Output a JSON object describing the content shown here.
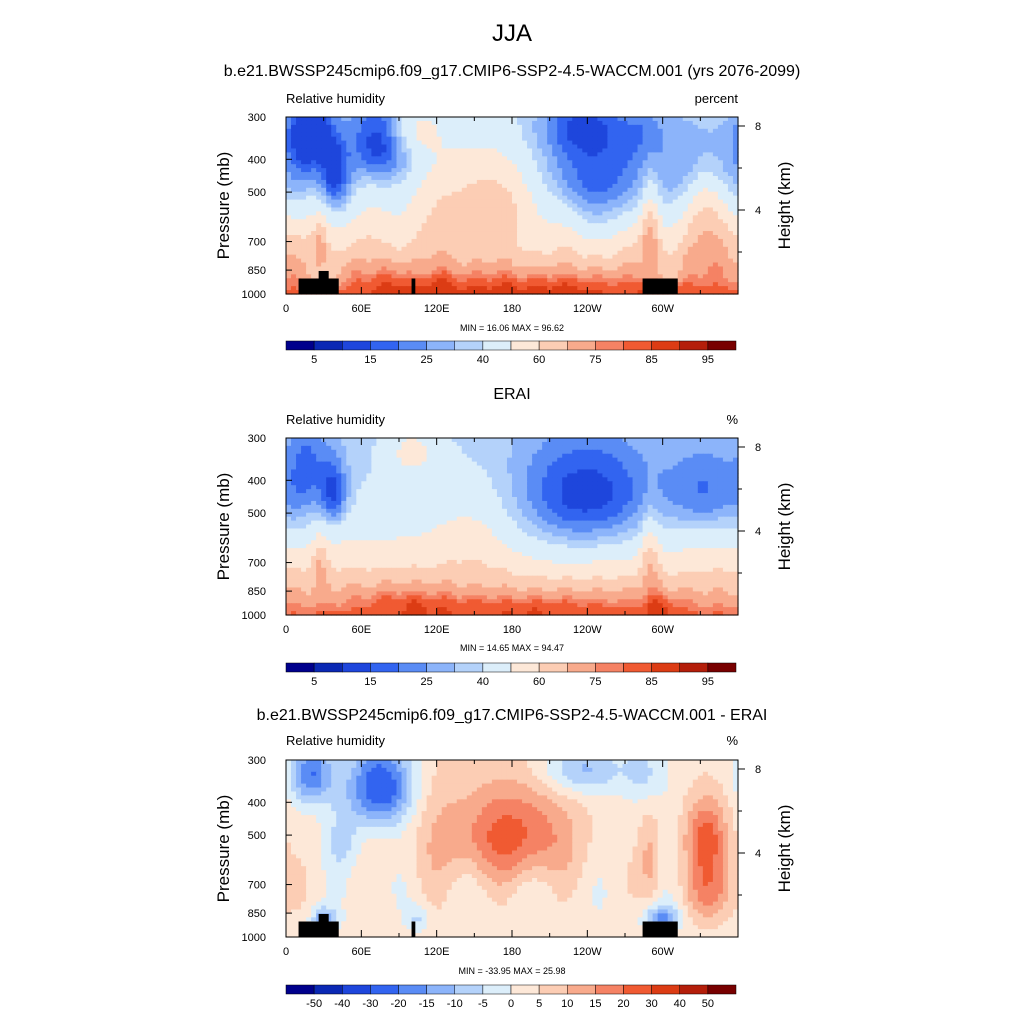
{
  "figure": {
    "main_title": "JJA",
    "model_title": "b.e21.BWSSP245cmip6.f09_g17.CMIP6-SSP2-4.5-WACCM.001 (yrs 2076-2099)",
    "obs_title": "ERAI",
    "diff_title": "b.e21.BWSSP245cmip6.f09_g17.CMIP6-SSP2-4.5-WACCM.001 - ERAI"
  },
  "palette": {
    "abs": [
      "#00008c",
      "#0a28b4",
      "#1e46dc",
      "#3264f0",
      "#5a8cf5",
      "#8cb4fa",
      "#b4d2fa",
      "#dceefa",
      "#fde8d8",
      "#fccdb4",
      "#f8aa8c",
      "#f58264",
      "#f05a32",
      "#dc3c14",
      "#b41e0a",
      "#780000"
    ],
    "diff": [
      "#00008c",
      "#0a28b4",
      "#1e46dc",
      "#3264f0",
      "#5a8cf5",
      "#8cb4fa",
      "#b4d2fa",
      "#dceefa",
      "#fde8d8",
      "#fccdb4",
      "#f8aa8c",
      "#f58264",
      "#f05a32",
      "#dc3c14",
      "#b41e0a",
      "#780000"
    ]
  },
  "chart_data": [
    {
      "type": "heatmap",
      "id": "model",
      "title": "b.e21.BWSSP245cmip6.f09_g17.CMIP6-SSP2-4.5-WACCM.001 (yrs 2076-2099)",
      "left_label": "Relative humidity",
      "right_label": "percent",
      "ylabel": "Pressure (mb)",
      "y2label": "Height (km)",
      "x_ticks": [
        "0",
        "60E",
        "120E",
        "180",
        "120W",
        "60W"
      ],
      "x_tick_lon": [
        0,
        60,
        120,
        180,
        240,
        300
      ],
      "xlim": [
        0,
        360
      ],
      "y_ticks": [
        "300",
        "400",
        "500",
        "700",
        "850",
        "1000"
      ],
      "y_tick_p": [
        300,
        400,
        500,
        700,
        850,
        1000
      ],
      "ylim": [
        300,
        1000
      ],
      "y2_ticks": [
        "8",
        "4"
      ],
      "y2_tick_km": [
        8,
        4
      ],
      "minmax": "MIN = 16.06  MAX = 96.62",
      "colorbar_labels": [
        "5",
        "15",
        "25",
        "40",
        "60",
        "75",
        "85",
        "95"
      ],
      "levels": [
        2,
        5,
        10,
        15,
        20,
        25,
        30,
        40,
        50,
        60,
        70,
        75,
        80,
        85,
        90
      ],
      "field": "model",
      "topography": true
    },
    {
      "type": "heatmap",
      "id": "obs",
      "title": "ERAI",
      "left_label": "Relative humidity",
      "right_label": "%",
      "ylabel": "Pressure (mb)",
      "y2label": "Height (km)",
      "x_ticks": [
        "0",
        "60E",
        "120E",
        "180",
        "120W",
        "60W"
      ],
      "x_tick_lon": [
        0,
        60,
        120,
        180,
        240,
        300
      ],
      "xlim": [
        0,
        360
      ],
      "y_ticks": [
        "300",
        "400",
        "500",
        "700",
        "850",
        "1000"
      ],
      "y_tick_p": [
        300,
        400,
        500,
        700,
        850,
        1000
      ],
      "ylim": [
        300,
        1000
      ],
      "y2_ticks": [
        "8",
        "4"
      ],
      "y2_tick_km": [
        8,
        4
      ],
      "minmax": "MIN = 14.65  MAX = 94.47",
      "colorbar_labels": [
        "5",
        "15",
        "25",
        "40",
        "60",
        "75",
        "85",
        "95"
      ],
      "levels": [
        2,
        5,
        10,
        15,
        20,
        25,
        30,
        40,
        50,
        60,
        70,
        75,
        80,
        85,
        90
      ],
      "field": "obs",
      "topography": false
    },
    {
      "type": "heatmap",
      "id": "diff",
      "title": "b.e21.BWSSP245cmip6.f09_g17.CMIP6-SSP2-4.5-WACCM.001 - ERAI",
      "left_label": "Relative humidity",
      "right_label": "%",
      "ylabel": "Pressure (mb)",
      "y2label": "Height (km)",
      "x_ticks": [
        "0",
        "60E",
        "120E",
        "180",
        "120W",
        "60W"
      ],
      "x_tick_lon": [
        0,
        60,
        120,
        180,
        240,
        300
      ],
      "xlim": [
        0,
        360
      ],
      "y_ticks": [
        "300",
        "400",
        "500",
        "700",
        "850",
        "1000"
      ],
      "y_tick_p": [
        300,
        400,
        500,
        700,
        850,
        1000
      ],
      "ylim": [
        300,
        1000
      ],
      "y2_ticks": [
        "8",
        "4"
      ],
      "y2_tick_km": [
        8,
        4
      ],
      "minmax": "MIN = -33.95  MAX = 25.98",
      "colorbar_labels": [
        "-50",
        "-40",
        "-30",
        "-20",
        "-15",
        "-10",
        "-5",
        "0",
        "5",
        "10",
        "15",
        "20",
        "30",
        "40",
        "50"
      ],
      "levels": [
        -50,
        -40,
        -30,
        -20,
        -15,
        -10,
        -5,
        0,
        5,
        10,
        15,
        20,
        30,
        40,
        50
      ],
      "field": "diff",
      "topography": true
    }
  ]
}
